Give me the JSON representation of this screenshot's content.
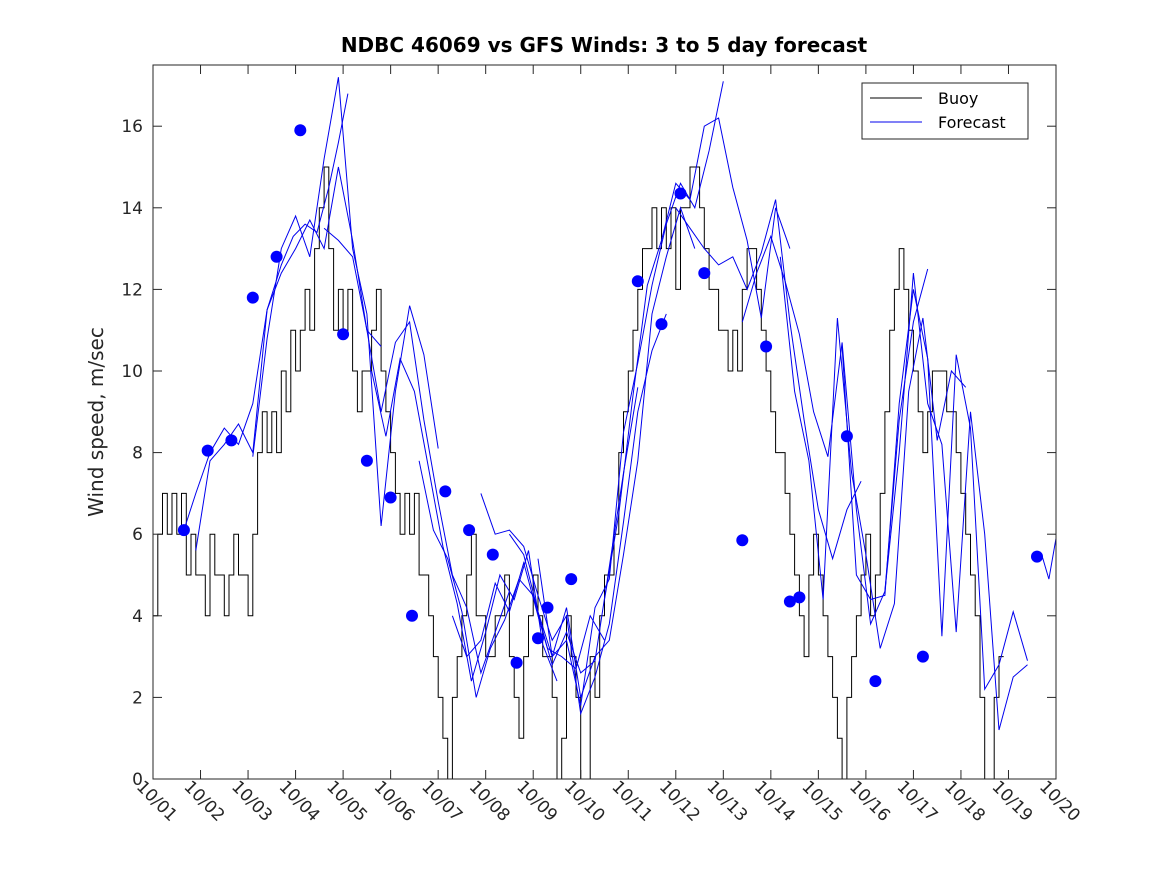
{
  "chart_data": {
    "type": "line",
    "title": "NDBC 46069 vs GFS Winds: 3 to 5 day forecast",
    "xlabel": "",
    "ylabel": "Wind speed, m/sec",
    "xlim": [
      0,
      19
    ],
    "ylim": [
      0,
      17.5
    ],
    "x_tick_labels": [
      "10/01",
      "10/02",
      "10/03",
      "10/04",
      "10/05",
      "10/06",
      "10/07",
      "10/08",
      "10/09",
      "10/10",
      "10/11",
      "10/12",
      "10/13",
      "10/14",
      "10/15",
      "10/16",
      "10/17",
      "10/18",
      "10/19",
      "10/20"
    ],
    "y_ticks": [
      0,
      2,
      4,
      6,
      8,
      10,
      12,
      14,
      16
    ],
    "legend": {
      "position": "top-right",
      "entries": [
        "Buoy",
        "Forecast"
      ]
    },
    "colors": {
      "buoy": "#000000",
      "forecast": "#0000ee",
      "markers": "#0000ff"
    },
    "series": [
      {
        "name": "Buoy",
        "x": [
          0.0,
          0.1,
          0.2,
          0.3,
          0.4,
          0.5,
          0.6,
          0.7,
          0.8,
          0.9,
          1.0,
          1.1,
          1.2,
          1.3,
          1.4,
          1.5,
          1.6,
          1.7,
          1.8,
          1.9,
          2.0,
          2.1,
          2.2,
          2.3,
          2.4,
          2.5,
          2.6,
          2.7,
          2.8,
          2.9,
          3.0,
          3.1,
          3.2,
          3.3,
          3.4,
          3.5,
          3.6,
          3.7,
          3.8,
          3.9,
          4.0,
          4.1,
          4.2,
          4.3,
          4.4,
          4.5,
          4.6,
          4.7,
          4.8,
          4.9,
          5.0,
          5.1,
          5.2,
          5.3,
          5.4,
          5.5,
          5.6,
          5.7,
          5.8,
          5.9,
          6.0,
          6.1,
          6.2,
          6.3,
          6.4,
          6.5,
          6.6,
          6.7,
          6.8,
          6.9,
          7.0,
          7.1,
          7.2,
          7.3,
          7.4,
          7.5,
          7.6,
          7.7,
          7.8,
          7.9,
          8.0,
          8.1,
          8.2,
          8.3,
          8.4,
          8.5,
          8.6,
          8.7,
          8.8,
          8.9,
          9.0,
          9.1,
          9.2,
          9.3,
          9.4,
          9.5,
          9.6,
          9.7,
          9.8,
          9.9,
          10.0,
          10.1,
          10.2,
          10.3,
          10.4,
          10.5,
          10.6,
          10.7,
          10.8,
          10.9,
          11.0,
          11.1,
          11.2,
          11.3,
          11.4,
          11.5,
          11.6,
          11.7,
          11.8,
          11.9,
          12.0,
          12.1,
          12.2,
          12.3,
          12.4,
          12.5,
          12.6,
          12.7,
          12.8,
          12.9,
          13.0,
          13.1,
          13.2,
          13.3,
          13.4,
          13.5,
          13.6,
          13.7,
          13.8,
          13.9,
          14.0,
          14.1,
          14.2,
          14.3,
          14.4,
          14.5,
          14.6,
          14.7,
          14.8,
          14.9,
          15.0,
          15.1,
          15.2,
          15.3,
          15.4,
          15.5,
          15.6,
          15.7,
          15.8,
          15.9,
          16.0,
          16.1,
          16.2,
          16.3,
          16.4,
          16.5,
          16.6,
          16.7,
          16.8,
          16.9,
          17.0,
          17.1,
          17.2,
          17.3,
          17.4,
          17.5,
          17.6,
          17.7,
          17.8
        ],
        "values": [
          4,
          6,
          7,
          6,
          7,
          6,
          7,
          5,
          6,
          5,
          5,
          4,
          6,
          5,
          5,
          4,
          5,
          6,
          5,
          5,
          4,
          6,
          8,
          9,
          8,
          9,
          8,
          10,
          9,
          11,
          10,
          11,
          12,
          11,
          13,
          14,
          15,
          13,
          11,
          12,
          11,
          12,
          10,
          9,
          10,
          10,
          11,
          12,
          10,
          9,
          8,
          7,
          6,
          7,
          6,
          7,
          5,
          5,
          4,
          3,
          2,
          1,
          0,
          2,
          3,
          4,
          5,
          6,
          4,
          4,
          3,
          3,
          4,
          4,
          5,
          3,
          2,
          1,
          3,
          4,
          5,
          4,
          3,
          3,
          2,
          0,
          1,
          4,
          3,
          2,
          0,
          0,
          3,
          2,
          4,
          5,
          5,
          6,
          8,
          9,
          10,
          11,
          12,
          13,
          13,
          14,
          13,
          14,
          13,
          14,
          12,
          14,
          14,
          15,
          15,
          14,
          13,
          12,
          12,
          11,
          11,
          10,
          11,
          10,
          12,
          13,
          13,
          12,
          11,
          10,
          9,
          8,
          8,
          7,
          6,
          5,
          4,
          3,
          5,
          6,
          5,
          4,
          3,
          2,
          1,
          0,
          2,
          3,
          4,
          5,
          6,
          4,
          5,
          7,
          9,
          11,
          12,
          13,
          12,
          11,
          10,
          9,
          8,
          9,
          10,
          10,
          10,
          9,
          9,
          8,
          7,
          6,
          5,
          4,
          2,
          0,
          0,
          2,
          3
        ]
      },
      {
        "name": "Forecast",
        "segments": [
          {
            "x": [
              0.65,
              0.9,
              1.2,
              1.5,
              1.8,
              2.1,
              2.4,
              2.7,
              2.95,
              3.2,
              3.45,
              3.7,
              3.9,
              4.1
            ],
            "y": [
              6.1,
              7.0,
              8.0,
              8.6,
              8.2,
              9.2,
              11.5,
              12.6,
              13.3,
              13.6,
              13.4,
              14.5,
              15.6,
              16.8
            ]
          },
          {
            "x": [
              0.9,
              1.2,
              1.5,
              1.8,
              2.1,
              2.4,
              2.7,
              3.0,
              3.3,
              3.6,
              3.9,
              4.2,
              4.5,
              4.8
            ],
            "y": [
              5.6,
              7.8,
              8.2,
              8.7,
              8.0,
              11.5,
              12.4,
              13.0,
              13.7,
              13.0,
              15.0,
              13.2,
              11.0,
              10.6
            ]
          },
          {
            "x": [
              2.1,
              2.4,
              2.7,
              3.0,
              3.3,
              3.6,
              3.9,
              4.2,
              4.5,
              4.8,
              5.1,
              5.4,
              5.7,
              6.0
            ],
            "y": [
              7.9,
              10.8,
              13.0,
              13.8,
              12.8,
              15.2,
              17.2,
              13.0,
              11.4,
              6.2,
              9.5,
              11.6,
              10.4,
              8.1
            ]
          },
          {
            "x": [
              3.6,
              3.9,
              4.2,
              4.5,
              4.8,
              5.1,
              5.4,
              5.7,
              6.0,
              6.3,
              6.6,
              6.9,
              7.2,
              7.5
            ],
            "y": [
              13.5,
              13.2,
              12.8,
              11.0,
              9.0,
              10.7,
              11.2,
              8.8,
              6.8,
              5.0,
              4.2,
              2.6,
              3.6,
              4.6
            ]
          },
          {
            "x": [
              4.6,
              4.9,
              5.2,
              5.5,
              5.8,
              6.1,
              6.4,
              6.7,
              7.0,
              7.3,
              7.6,
              7.9,
              8.2,
              8.5
            ],
            "y": [
              10.0,
              8.4,
              10.3,
              9.5,
              7.6,
              5.7,
              4.3,
              2.4,
              3.6,
              5.0,
              4.4,
              5.6,
              3.3,
              2.4
            ]
          },
          {
            "x": [
              5.6,
              5.9,
              6.2,
              6.5,
              6.8,
              7.1,
              7.4,
              7.7,
              8.0,
              8.3,
              8.6,
              8.9,
              9.2,
              9.5
            ],
            "y": [
              7.8,
              6.1,
              5.4,
              4.1,
              2.0,
              3.2,
              3.9,
              4.9,
              4.5,
              3.2,
              3.0,
              2.7,
              4.0,
              3.4
            ]
          },
          {
            "x": [
              6.3,
              6.6,
              6.9,
              7.2,
              7.5,
              7.8,
              8.1,
              8.4,
              8.7,
              9.0,
              9.3,
              9.6,
              9.9,
              10.2
            ],
            "y": [
              4.0,
              3.0,
              3.4,
              4.8,
              4.1,
              5.3,
              4.0,
              2.8,
              3.6,
              2.6,
              2.9,
              5.2,
              7.5,
              9.6
            ]
          },
          {
            "x": [
              6.9,
              7.2,
              7.5,
              7.8,
              8.1,
              8.4,
              8.7,
              9.0,
              9.3,
              9.6,
              9.9,
              10.2,
              10.5,
              10.8
            ],
            "y": [
              7.0,
              6.0,
              6.1,
              5.7,
              4.5,
              3.4,
              4.0,
              1.6,
              2.5,
              3.8,
              6.3,
              9.0,
              10.5,
              11.4
            ]
          },
          {
            "x": [
              7.5,
              7.8,
              8.1,
              8.4,
              8.7,
              9.0,
              9.3,
              9.6,
              9.9,
              10.2,
              10.5,
              10.8,
              11.1,
              11.4
            ],
            "y": [
              6.0,
              5.5,
              4.1,
              3.0,
              4.2,
              2.0,
              3.0,
              3.4,
              5.5,
              7.8,
              11.4,
              12.8,
              14.0,
              13.0
            ]
          },
          {
            "x": [
              8.1,
              8.4,
              8.7,
              9.0,
              9.3,
              9.6,
              9.9,
              10.2,
              10.5,
              10.8,
              11.1,
              11.4,
              11.7,
              12.0
            ],
            "y": [
              5.4,
              3.0,
              3.4,
              1.8,
              4.2,
              4.9,
              8.5,
              10.2,
              12.1,
              13.6,
              14.6,
              14.0,
              15.4,
              17.1
            ]
          },
          {
            "x": [
              9.5,
              9.8,
              10.1,
              10.4,
              10.7,
              11.0,
              11.3,
              11.6,
              11.9,
              12.2,
              12.5,
              12.8,
              13.1,
              13.4
            ],
            "y": [
              4.4,
              6.5,
              9.4,
              12.1,
              13.2,
              14.6,
              14.2,
              16.0,
              16.2,
              14.5,
              13.2,
              11.3,
              14.0,
              13.0
            ]
          },
          {
            "x": [
              11.0,
              11.3,
              11.6,
              11.9,
              12.2,
              12.5,
              12.8,
              13.1,
              13.4,
              13.7,
              14.0,
              14.3,
              14.6,
              14.9
            ],
            "y": [
              14.0,
              13.5,
              13.0,
              12.6,
              12.8,
              12.0,
              12.9,
              14.2,
              11.2,
              8.8,
              6.6,
              5.4,
              6.6,
              7.3
            ]
          },
          {
            "x": [
              12.4,
              12.7,
              13.0,
              13.3,
              13.6,
              13.9,
              14.2,
              14.5,
              14.8,
              15.1,
              15.4,
              15.7,
              16.0,
              16.3
            ],
            "y": [
              11.2,
              12.4,
              13.3,
              12.2,
              10.9,
              9.0,
              7.9,
              10.7,
              6.6,
              3.8,
              4.6,
              8.8,
              11.2,
              12.5
            ]
          },
          {
            "x": [
              13.2,
              13.5,
              13.8,
              14.1,
              14.4,
              14.7,
              15.0,
              15.3,
              15.6,
              15.9,
              16.2,
              16.5,
              16.8,
              17.1
            ],
            "y": [
              12.8,
              9.5,
              7.8,
              4.4,
              11.3,
              7.5,
              5.5,
              3.2,
              4.3,
              9.5,
              11.3,
              8.3,
              10.0,
              9.6
            ]
          },
          {
            "x": [
              14.5,
              14.8,
              15.1,
              15.4,
              15.7,
              16.0,
              16.3,
              16.6,
              16.9,
              17.2,
              17.5,
              17.8,
              18.1,
              18.4
            ],
            "y": [
              10.6,
              5.0,
              4.4,
              4.5,
              9.2,
              12.0,
              10.3,
              3.5,
              10.4,
              8.6,
              2.2,
              2.8,
              4.1,
              2.9
            ]
          },
          {
            "x": [
              15.4,
              15.7,
              16.0,
              16.3,
              16.6,
              16.9,
              17.2,
              17.5,
              17.8,
              18.1,
              18.4
            ],
            "y": [
              4.6,
              8.0,
              12.4,
              9.2,
              8.2,
              3.6,
              9.0,
              6.0,
              1.2,
              2.5,
              2.8
            ]
          },
          {
            "x": [
              18.7,
              18.85,
              19.0
            ],
            "y": [
              5.5,
              4.9,
              5.9
            ]
          }
        ],
        "markers": {
          "x": [
            0.65,
            1.15,
            1.65,
            2.1,
            2.6,
            3.1,
            4.0,
            4.5,
            5.0,
            5.45,
            6.15,
            6.65,
            7.15,
            7.65,
            8.1,
            8.3,
            8.8,
            10.2,
            10.7,
            11.1,
            11.6,
            12.4,
            12.9,
            13.4,
            13.6,
            14.6,
            15.2,
            16.2,
            18.6
          ],
          "values": [
            6.1,
            8.05,
            8.3,
            11.8,
            12.8,
            15.9,
            10.9,
            7.8,
            6.9,
            4.0,
            7.05,
            6.1,
            5.5,
            2.85,
            3.45,
            4.2,
            4.9,
            12.2,
            11.15,
            14.35,
            12.4,
            5.85,
            10.6,
            4.35,
            4.45,
            8.4,
            2.4,
            3.0,
            5.45
          ]
        }
      }
    ]
  }
}
